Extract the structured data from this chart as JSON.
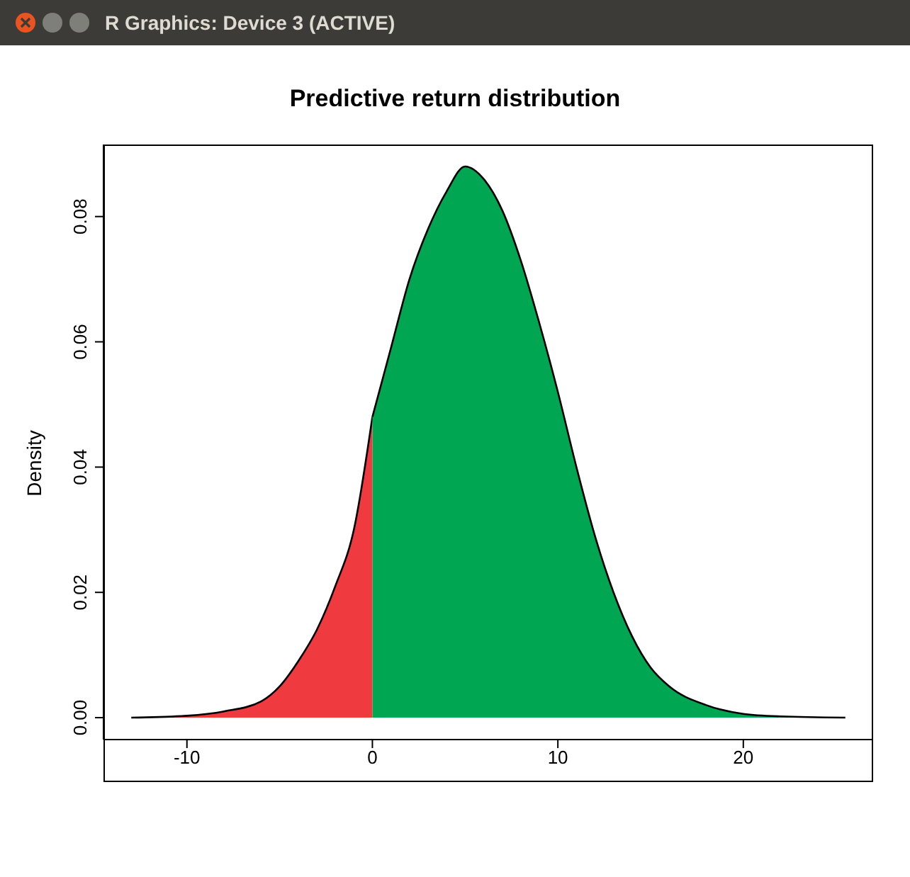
{
  "chart_data": {
    "type": "area",
    "title": "Predictive return distribution",
    "ylabel": "Density",
    "annotations": [
      "R Graphics: Device 3 (ACTIVE)"
    ],
    "xlim": [
      -14.5,
      27
    ],
    "ylim": [
      -0.0035,
      0.0915
    ],
    "xticks": [
      -10,
      0,
      10,
      20
    ],
    "yticks": [
      {
        "value": 0,
        "label": "0.00"
      },
      0.02,
      0.04,
      0.06,
      0.08
    ],
    "series": [
      {
        "color": "#ef3b3f",
        "x": [
          -13,
          -10,
          -8,
          -6,
          -5,
          -4,
          -3,
          -2,
          -1,
          0
        ],
        "values": [
          0,
          0.0003,
          0.001,
          0.0026,
          0.005,
          0.009,
          0.014,
          0.021,
          0.03,
          0.048
        ]
      },
      {
        "color": "#00a651",
        "x": [
          0,
          1,
          2,
          3,
          4,
          5,
          6,
          7,
          8,
          9,
          10,
          11,
          12,
          13,
          14,
          15,
          16,
          18,
          20,
          22,
          25.5
        ],
        "values": [
          0.048,
          0.059,
          0.07,
          0.078,
          0.084,
          0.088,
          0.086,
          0.081,
          0.073,
          0.063,
          0.052,
          0.04,
          0.029,
          0.02,
          0.013,
          0.008,
          0.005,
          0.002,
          0.0006,
          0.0002,
          0
        ]
      }
    ]
  }
}
